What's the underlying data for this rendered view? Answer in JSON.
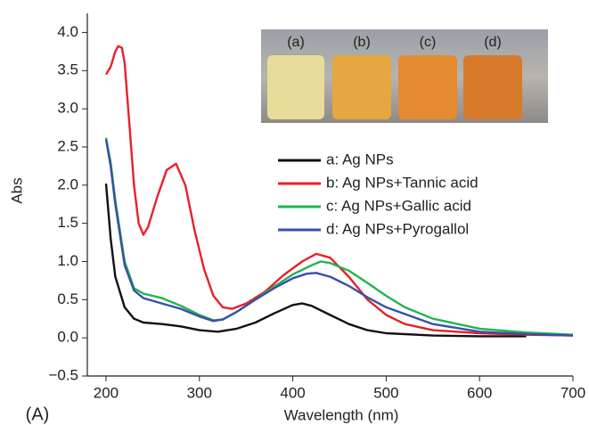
{
  "chart_data": {
    "type": "line",
    "panel_label": "(A)",
    "xlabel": "Wavelength (nm)",
    "ylabel": "Abs",
    "inset_labels": [
      "(a)",
      "(b)",
      "(c)",
      "(d)"
    ],
    "xlim": [
      180,
      700
    ],
    "ylim": [
      -0.5,
      4.25
    ],
    "xticks": [
      200,
      300,
      400,
      500,
      600,
      700
    ],
    "yticks": [
      {
        "value": -0.5,
        "label": "−0.5"
      },
      {
        "value": 0,
        "label": "0.0"
      },
      0.5,
      {
        "value": 1,
        "label": "1.0"
      },
      1.5,
      {
        "value": 2,
        "label": "2.0"
      },
      2.5,
      {
        "value": 3,
        "label": "3.0"
      },
      3.5,
      {
        "value": 4,
        "label": "4.0"
      }
    ],
    "series": [
      {
        "name": "a: Ag NPs",
        "color": "#111111",
        "x": [
          200,
          205,
          210,
          220,
          230,
          240,
          260,
          280,
          300,
          320,
          340,
          360,
          380,
          400,
          410,
          420,
          440,
          460,
          480,
          500,
          550,
          600,
          650
        ],
        "values": [
          2.02,
          1.3,
          0.8,
          0.4,
          0.25,
          0.2,
          0.18,
          0.15,
          0.1,
          0.08,
          0.12,
          0.2,
          0.32,
          0.43,
          0.45,
          0.42,
          0.3,
          0.18,
          0.1,
          0.06,
          0.03,
          0.02,
          0.02
        ]
      },
      {
        "name": "b: Ag NPs+Tannic acid",
        "color": "#e8202a",
        "x": [
          200,
          205,
          210,
          213,
          217,
          220,
          225,
          230,
          235,
          240,
          245,
          255,
          265,
          275,
          285,
          295,
          305,
          315,
          325,
          335,
          350,
          370,
          390,
          410,
          425,
          440,
          460,
          480,
          500,
          520,
          550,
          600,
          650,
          700
        ],
        "values": [
          3.45,
          3.55,
          3.75,
          3.82,
          3.8,
          3.6,
          2.8,
          2.0,
          1.5,
          1.35,
          1.45,
          1.85,
          2.2,
          2.28,
          2.0,
          1.4,
          0.9,
          0.55,
          0.4,
          0.38,
          0.45,
          0.6,
          0.82,
          1.0,
          1.1,
          1.05,
          0.8,
          0.5,
          0.3,
          0.18,
          0.1,
          0.06,
          0.04,
          0.03
        ]
      },
      {
        "name": "c: Ag NPs+Gallic acid",
        "color": "#1fb54f",
        "x": [
          200,
          205,
          210,
          220,
          230,
          240,
          260,
          280,
          300,
          315,
          325,
          340,
          360,
          380,
          400,
          420,
          430,
          440,
          460,
          480,
          500,
          520,
          550,
          600,
          650,
          700
        ],
        "values": [
          2.62,
          2.3,
          1.8,
          1.0,
          0.65,
          0.58,
          0.52,
          0.42,
          0.3,
          0.23,
          0.24,
          0.34,
          0.5,
          0.67,
          0.83,
          0.95,
          1.0,
          0.98,
          0.88,
          0.72,
          0.55,
          0.4,
          0.25,
          0.12,
          0.07,
          0.04
        ]
      },
      {
        "name": "d: Ag NPs+Pyrogallol",
        "color": "#3a4fa8",
        "x": [
          200,
          205,
          210,
          220,
          230,
          240,
          260,
          280,
          300,
          315,
          325,
          340,
          360,
          380,
          400,
          415,
          425,
          440,
          460,
          480,
          500,
          550,
          600,
          650,
          700
        ],
        "values": [
          2.6,
          2.25,
          1.75,
          0.95,
          0.62,
          0.52,
          0.45,
          0.38,
          0.28,
          0.22,
          0.24,
          0.34,
          0.5,
          0.65,
          0.78,
          0.84,
          0.85,
          0.8,
          0.68,
          0.53,
          0.4,
          0.18,
          0.08,
          0.05,
          0.03
        ]
      }
    ]
  }
}
